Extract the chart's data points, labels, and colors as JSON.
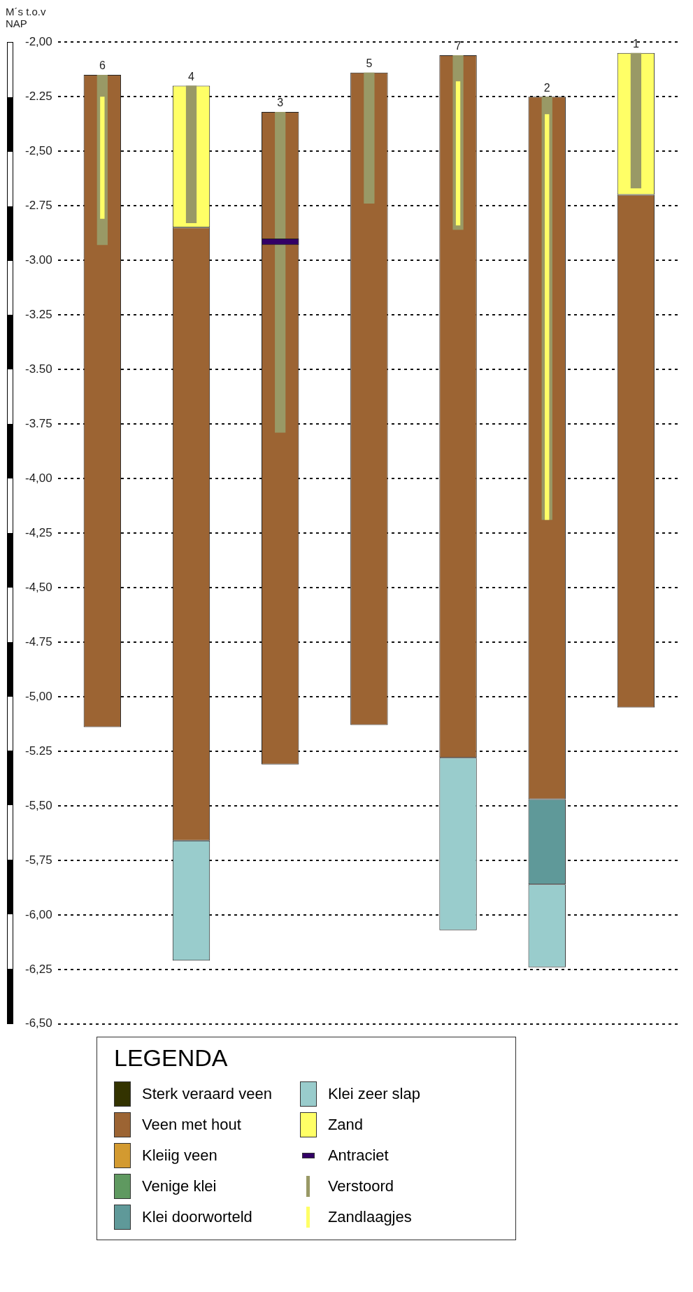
{
  "chart_data": {
    "type": "bar",
    "ylabel": "M´s t.o.v NAP",
    "legend_title": "LEGENDA",
    "legend": "bottom",
    "grid": "y",
    "tick_labels": "y",
    "categories": [
      "6",
      "4",
      "3",
      "5",
      "7",
      "2",
      "1"
    ],
    "ylim": [
      -6.5,
      -2.0
    ],
    "yticks": [
      {
        "value": -2.0,
        "label": "-2,00"
      },
      {
        "value": -2.25,
        "label": "-2.25"
      },
      {
        "value": -2.5,
        "label": "-2,50"
      },
      {
        "value": -2.75,
        "label": "-2.75"
      },
      {
        "value": -3.0,
        "label": "-3.00"
      },
      {
        "value": -3.25,
        "label": "-3.25"
      },
      {
        "value": -3.5,
        "label": "-3.50"
      },
      {
        "value": -3.75,
        "label": "-3.75"
      },
      {
        "value": -4.0,
        "label": "-4,00"
      },
      {
        "value": -4.25,
        "label": "-4,25"
      },
      {
        "value": -4.5,
        "label": "-4,50"
      },
      {
        "value": -4.75,
        "label": "-4.75"
      },
      {
        "value": -5.0,
        "label": "-5,00"
      },
      {
        "value": -5.25,
        "label": "-5.25"
      },
      {
        "value": -5.5,
        "label": "-5,50"
      },
      {
        "value": -5.75,
        "label": "-5,75"
      },
      {
        "value": -6.0,
        "label": "-6,00"
      },
      {
        "value": -6.25,
        "label": "-6,25"
      },
      {
        "value": -6.5,
        "label": "-6,50"
      }
    ],
    "series": [
      {
        "name": "Sterk veraard veen",
        "color": "#333300",
        "base": [
          null,
          null,
          null,
          null,
          null,
          null,
          null
        ],
        "values": [
          null,
          null,
          null,
          null,
          null,
          null,
          null
        ]
      },
      {
        "name": "Veen met hout",
        "color": "#9c6433",
        "base": [
          -2.15,
          -2.85,
          -2.32,
          -2.14,
          -2.06,
          -2.25,
          -2.7
        ],
        "values": [
          -2.99,
          -2.81,
          -2.99,
          -2.99,
          -3.22,
          -3.22,
          -2.35
        ]
      },
      {
        "name": "Kleiig veen",
        "color": "#d39a30",
        "base": [
          null,
          null,
          null,
          null,
          null,
          null,
          null
        ],
        "values": [
          null,
          null,
          null,
          null,
          null,
          null,
          null
        ]
      },
      {
        "name": "Venige klei",
        "color": "#5f9960",
        "base": [
          null,
          null,
          null,
          null,
          null,
          null,
          null
        ],
        "values": [
          null,
          null,
          null,
          null,
          null,
          null,
          null
        ]
      },
      {
        "name": "Klei doorworteld",
        "color": "#5f9999",
        "base": [
          null,
          null,
          null,
          null,
          null,
          -5.47,
          null
        ],
        "values": [
          null,
          null,
          null,
          null,
          null,
          -0.39,
          null
        ]
      },
      {
        "name": "Klei zeer slap",
        "color": "#99cccc",
        "base": [
          null,
          -5.66,
          null,
          null,
          -5.28,
          -5.86,
          null
        ],
        "values": [
          null,
          -0.55,
          null,
          null,
          -0.79,
          -0.38,
          null
        ]
      },
      {
        "name": "Zand",
        "color": "#ffff66",
        "base": [
          null,
          -2.2,
          null,
          null,
          null,
          null,
          -2.05
        ],
        "values": [
          null,
          -0.65,
          null,
          null,
          null,
          null,
          -0.65
        ]
      },
      {
        "name": "Antraciet",
        "color": "#330066",
        "base": [
          null,
          null,
          -2.9,
          null,
          null,
          null,
          null
        ],
        "values": [
          null,
          null,
          -0.03,
          null,
          null,
          null,
          null
        ]
      },
      {
        "name": "Verstoord",
        "color": "#999966",
        "line_style": "dashed",
        "base": [
          -2.15,
          -2.2,
          -2.32,
          -2.14,
          -2.06,
          -2.25,
          -2.05
        ],
        "values": [
          -0.78,
          -0.63,
          -1.47,
          -0.6,
          -0.8,
          -1.94,
          -0.62
        ]
      },
      {
        "name": "Zandlaagjes",
        "color": "#ffff66",
        "line_style": "dotted",
        "base": [
          -2.25,
          null,
          null,
          null,
          -2.18,
          -2.33,
          null
        ],
        "values": [
          -0.56,
          null,
          null,
          null,
          -0.66,
          -1.86,
          null
        ]
      }
    ]
  }
}
